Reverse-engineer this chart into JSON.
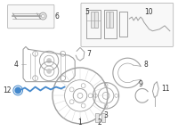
{
  "bg_color": "#ffffff",
  "fig_width": 2.0,
  "fig_height": 1.47,
  "dpi": 100,
  "lc": "#a0a0a0",
  "sc": "#4488cc",
  "fs": 5.5,
  "fc": "#333333"
}
